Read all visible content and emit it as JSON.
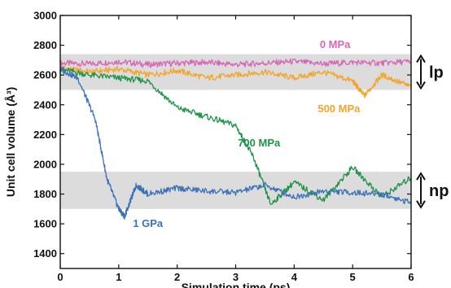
{
  "chart_data": {
    "type": "line",
    "xlabel": "Simulation time (ps)",
    "ylabel": "Unit cell volume (Å³)",
    "xlim": [
      0,
      6
    ],
    "ylim": [
      1300,
      3000
    ],
    "xticks": [
      0,
      1,
      2,
      3,
      4,
      5,
      6
    ],
    "yticks": [
      1400,
      1600,
      1800,
      2000,
      2200,
      2400,
      2600,
      2800,
      3000
    ],
    "grid": false,
    "bands": [
      {
        "label": "lp",
        "y0": 2500,
        "y1": 2740,
        "color": "#dcdcdc"
      },
      {
        "label": "np",
        "y0": 1700,
        "y1": 1950,
        "color": "#dcdcdc"
      }
    ],
    "series": [
      {
        "name": "0 MPa",
        "color": "#d766b8",
        "x": [
          0,
          0.5,
          1,
          1.5,
          2,
          2.5,
          3,
          3.5,
          4,
          4.5,
          5,
          5.5,
          6
        ],
        "values": [
          2680,
          2675,
          2690,
          2670,
          2680,
          2685,
          2670,
          2680,
          2690,
          2675,
          2685,
          2680,
          2690
        ]
      },
      {
        "name": "500 MPa",
        "color": "#f4a42a",
        "x": [
          0,
          0.5,
          1,
          1.5,
          2,
          2.5,
          3,
          3.5,
          4,
          4.5,
          5,
          5.2,
          5.5,
          6
        ],
        "values": [
          2650,
          2620,
          2640,
          2600,
          2630,
          2580,
          2600,
          2620,
          2580,
          2620,
          2560,
          2460,
          2600,
          2520
        ]
      },
      {
        "name": "700 MPa",
        "color": "#1e9448",
        "x": [
          0,
          0.5,
          1,
          1.5,
          2,
          2.5,
          3,
          3.3,
          3.6,
          4,
          4.5,
          5,
          5.5,
          6
        ],
        "values": [
          2640,
          2600,
          2580,
          2560,
          2380,
          2320,
          2260,
          2050,
          1730,
          1880,
          1760,
          1980,
          1780,
          1910
        ]
      },
      {
        "name": "1 GPa",
        "color": "#3c72b8",
        "x": [
          0,
          0.3,
          0.6,
          0.8,
          1,
          1.1,
          1.3,
          1.5,
          2,
          2.5,
          3,
          3.5,
          4,
          4.5,
          5,
          5.5,
          6
        ],
        "values": [
          2640,
          2580,
          2300,
          1900,
          1700,
          1650,
          1860,
          1800,
          1840,
          1820,
          1810,
          1860,
          1780,
          1820,
          1810,
          1800,
          1740
        ]
      }
    ],
    "annotations": [
      {
        "text": "0 MPa",
        "series": 0
      },
      {
        "text": "500 MPa",
        "series": 1
      },
      {
        "text": "700 MPa",
        "series": 2
      },
      {
        "text": "1 GPa",
        "series": 3
      },
      {
        "text": "lp",
        "band": 0
      },
      {
        "text": "np",
        "band": 1
      }
    ]
  }
}
